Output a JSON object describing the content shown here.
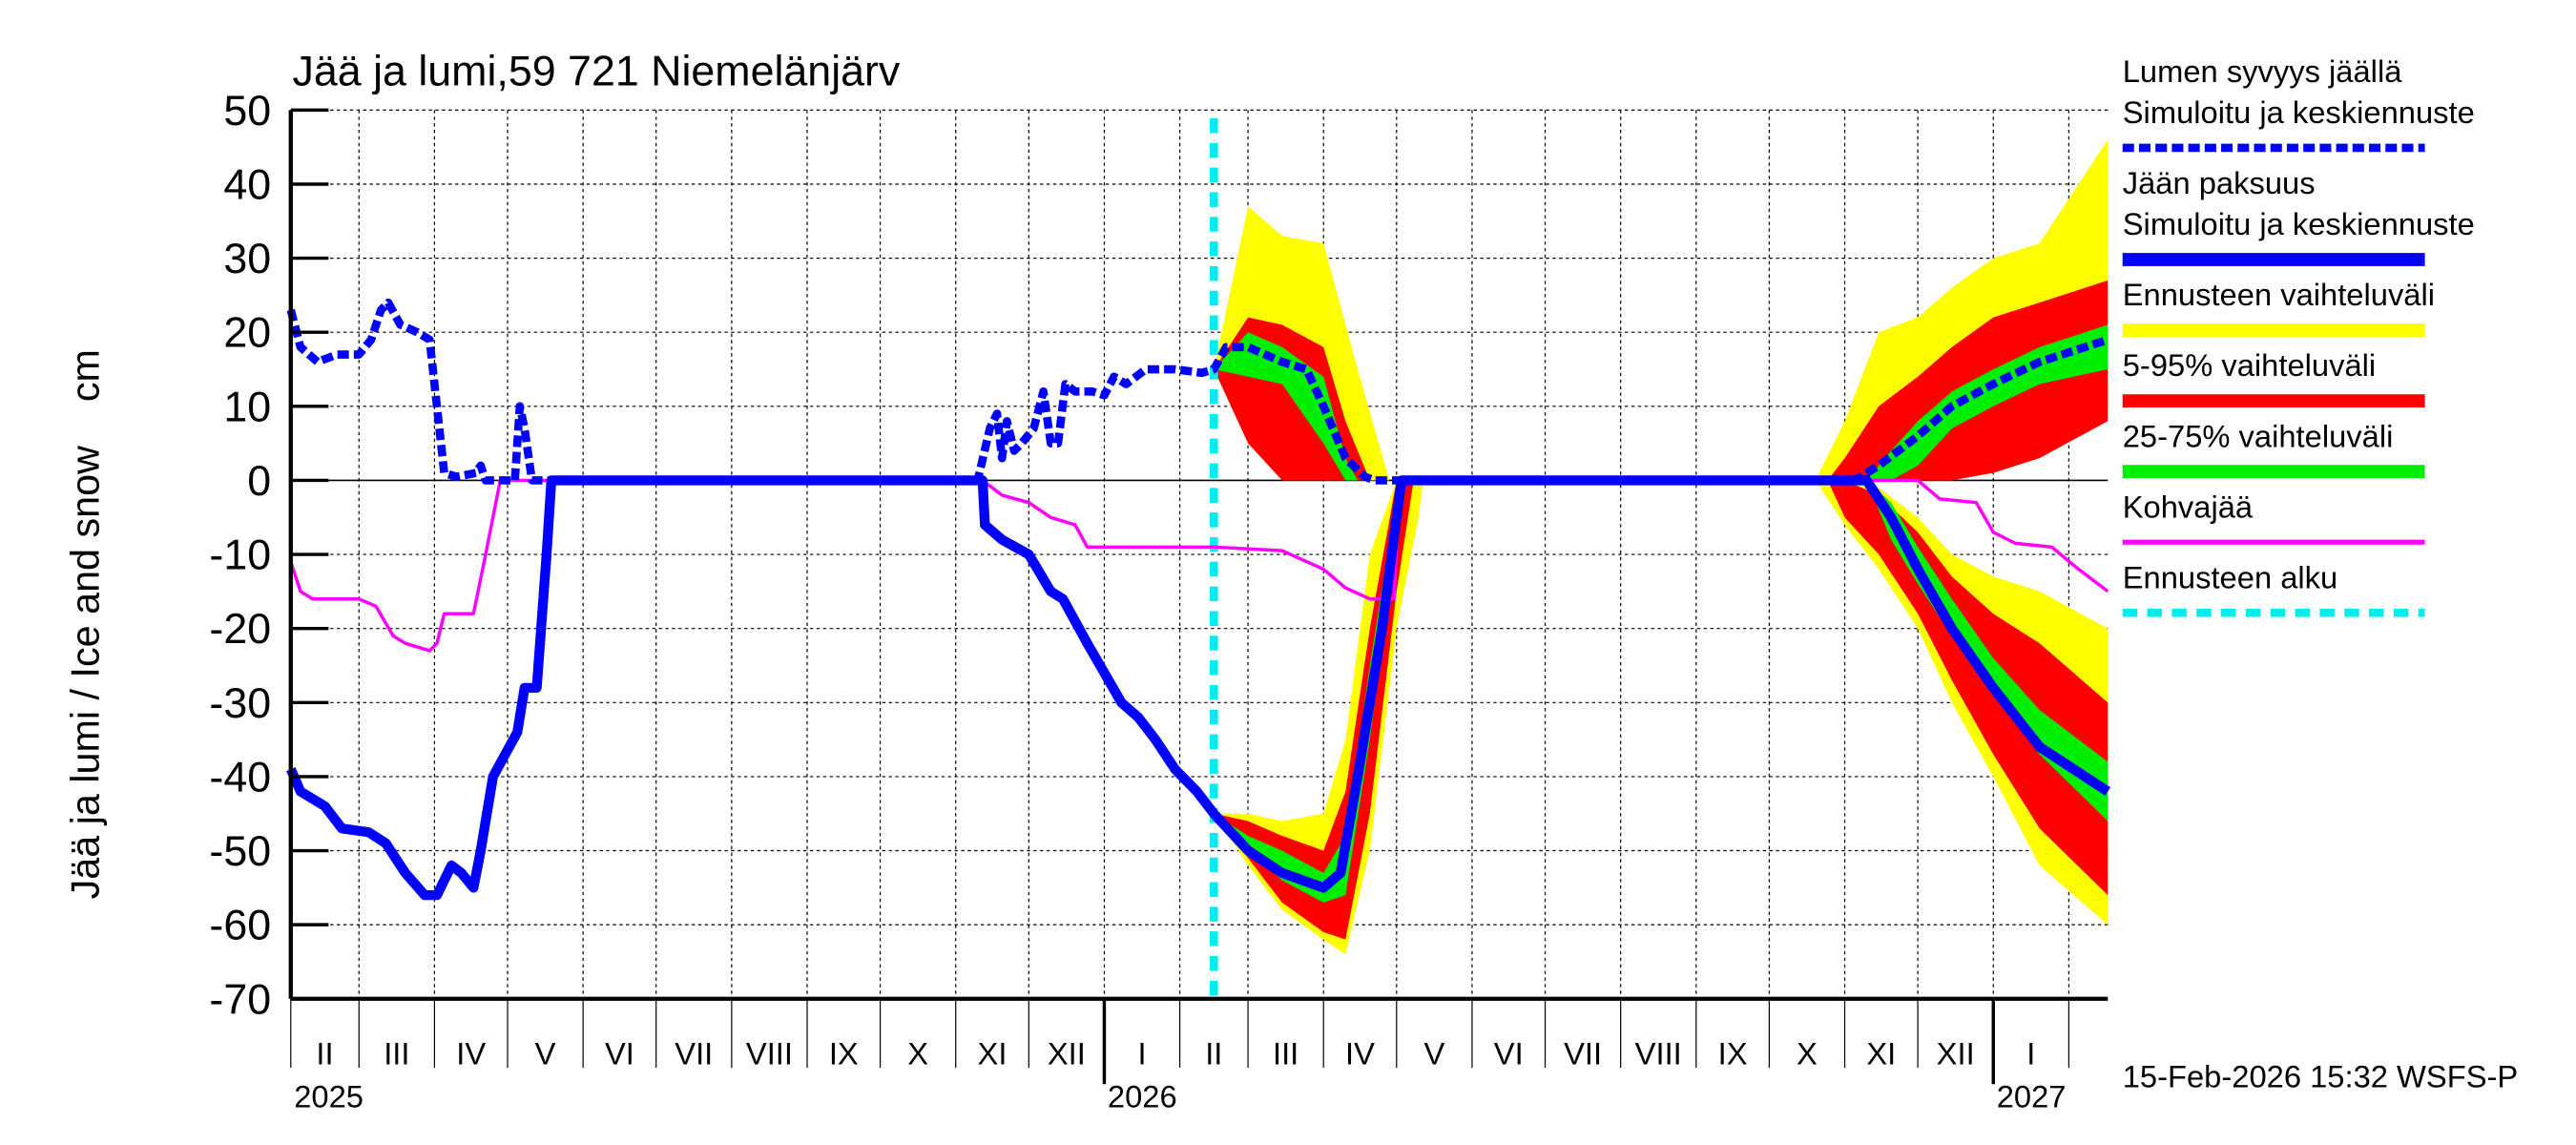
{
  "chart_data": {
    "type": "area",
    "title": "Jää ja lumi,59 721 Niemelänjärv",
    "ylabel": "Jää ja lumi / Ice and snow    cm",
    "ylim": [
      -70,
      50
    ],
    "yticks": [
      50,
      40,
      30,
      20,
      10,
      0,
      -10,
      -20,
      -30,
      -40,
      -50,
      -60,
      -70
    ],
    "xlim": [
      "2025-02-01",
      "2027-02-17"
    ],
    "grid": true,
    "legend_position": "right",
    "month_labels": [
      "II",
      "III",
      "IV",
      "V",
      "VI",
      "VII",
      "VIII",
      "IX",
      "X",
      "XI",
      "XII",
      "I",
      "II",
      "III",
      "IV",
      "V",
      "VI",
      "VII",
      "VIII",
      "IX",
      "X",
      "XI",
      "XII",
      "I"
    ],
    "month_starts": [
      "2025-02-01",
      "2025-03-01",
      "2025-04-01",
      "2025-05-01",
      "2025-06-01",
      "2025-07-01",
      "2025-08-01",
      "2025-09-01",
      "2025-10-01",
      "2025-11-01",
      "2025-12-01",
      "2026-01-01",
      "2026-02-01",
      "2026-03-01",
      "2026-04-01",
      "2026-05-01",
      "2026-06-01",
      "2026-07-01",
      "2026-08-01",
      "2026-09-01",
      "2026-10-01",
      "2026-11-01",
      "2026-12-01",
      "2027-01-01",
      "2027-02-01"
    ],
    "year_labels": [
      {
        "label": "2025",
        "date": "2025-02-01"
      },
      {
        "label": "2026",
        "date": "2026-01-01"
      },
      {
        "label": "2027",
        "date": "2027-01-01"
      }
    ],
    "forecast_start": "2026-02-15",
    "timestamp": "15-Feb-2026 15:32 WSFS-P",
    "colors": {
      "snow": "#0000ff",
      "ice": "#0000ff",
      "band_full": "#ffff00",
      "band_5_95": "#ff0000",
      "band_25_75": "#00ee00",
      "kohvajaa": "#ff00ff",
      "forecast_start": "#00eeee"
    },
    "legend": [
      {
        "label1": "Lumen syvyys jäällä",
        "label2": "Simuloitu ja keskiennuste",
        "style": "dashed-blue"
      },
      {
        "label1": "Jään paksuus",
        "label2": "Simuloitu ja keskiennuste",
        "style": "solid-blue"
      },
      {
        "label1": "Ennusteen vaihteluväli",
        "style": "yellow"
      },
      {
        "label1": "5-95% vaihteluväli",
        "style": "red"
      },
      {
        "label1": "25-75% vaihteluväli",
        "style": "green"
      },
      {
        "label1": "Kohvajää",
        "style": "magenta"
      },
      {
        "label1": "Ennusteen alku",
        "style": "dashed-cyan"
      }
    ],
    "bands": {
      "snow_full": [
        [
          "2026-02-15",
          15,
          15
        ],
        [
          "2026-03-01",
          10,
          37
        ],
        [
          "2026-03-15",
          4,
          33
        ],
        [
          "2026-04-01",
          0,
          32
        ],
        [
          "2026-04-15",
          0,
          15
        ],
        [
          "2026-04-28",
          0,
          0
        ],
        [
          "2026-10-20",
          0,
          0
        ],
        [
          "2026-11-01",
          0,
          8
        ],
        [
          "2026-11-15",
          0,
          20
        ],
        [
          "2026-12-01",
          0,
          22
        ],
        [
          "2026-12-15",
          0,
          26
        ],
        [
          "2027-01-01",
          3,
          30
        ],
        [
          "2027-01-20",
          5,
          32
        ],
        [
          "2027-02-17",
          10,
          46
        ]
      ],
      "snow_5_95": [
        [
          "2026-02-15",
          15,
          15
        ],
        [
          "2026-03-01",
          5,
          22
        ],
        [
          "2026-03-15",
          0,
          21
        ],
        [
          "2026-04-01",
          0,
          18
        ],
        [
          "2026-04-10",
          0,
          8
        ],
        [
          "2026-04-20",
          0,
          0
        ],
        [
          "2026-10-25",
          0,
          0
        ],
        [
          "2026-11-01",
          0,
          3
        ],
        [
          "2026-11-15",
          0,
          10
        ],
        [
          "2026-12-01",
          0,
          14
        ],
        [
          "2026-12-15",
          0,
          18
        ],
        [
          "2027-01-01",
          1,
          22
        ],
        [
          "2027-01-20",
          3,
          24
        ],
        [
          "2027-02-17",
          8,
          27
        ]
      ],
      "snow_25_75": [
        [
          "2026-02-15",
          15,
          15
        ],
        [
          "2026-03-01",
          14,
          20
        ],
        [
          "2026-03-15",
          13,
          18
        ],
        [
          "2026-04-01",
          5,
          14
        ],
        [
          "2026-04-10",
          0,
          3
        ],
        [
          "2026-04-15",
          0,
          0
        ],
        [
          "2026-11-10",
          0,
          0
        ],
        [
          "2026-11-20",
          0,
          4
        ],
        [
          "2026-12-01",
          2,
          8
        ],
        [
          "2026-12-15",
          7,
          12
        ],
        [
          "2027-01-01",
          10,
          15
        ],
        [
          "2027-01-20",
          13,
          18
        ],
        [
          "2027-02-17",
          15,
          21
        ]
      ],
      "ice_full": [
        [
          "2026-02-15",
          -45,
          -45
        ],
        [
          "2026-03-01",
          -52,
          -45
        ],
        [
          "2026-03-15",
          -58,
          -46
        ],
        [
          "2026-04-01",
          -62,
          -45
        ],
        [
          "2026-04-10",
          -64,
          -35
        ],
        [
          "2026-04-20",
          -50,
          -10
        ],
        [
          "2026-05-01",
          -20,
          0
        ],
        [
          "2026-05-10",
          -5,
          0
        ],
        [
          "2026-05-12",
          0,
          0
        ],
        [
          "2026-10-20",
          0,
          0
        ],
        [
          "2026-11-01",
          -6,
          0
        ],
        [
          "2026-11-15",
          -12,
          -1
        ],
        [
          "2026-12-01",
          -20,
          -5
        ],
        [
          "2026-12-15",
          -30,
          -10
        ],
        [
          "2027-01-01",
          -40,
          -13
        ],
        [
          "2027-01-20",
          -52,
          -15
        ],
        [
          "2027-02-17",
          -60,
          -20
        ]
      ],
      "ice_5_95": [
        [
          "2026-02-15",
          -45,
          -45
        ],
        [
          "2026-03-01",
          -51,
          -46
        ],
        [
          "2026-03-15",
          -57,
          -48
        ],
        [
          "2026-04-01",
          -61,
          -50
        ],
        [
          "2026-04-10",
          -62,
          -42
        ],
        [
          "2026-04-20",
          -45,
          -20
        ],
        [
          "2026-05-01",
          -15,
          0
        ],
        [
          "2026-05-08",
          0,
          0
        ],
        [
          "2026-10-25",
          0,
          0
        ],
        [
          "2026-11-01",
          -5,
          0
        ],
        [
          "2026-11-15",
          -10,
          -2
        ],
        [
          "2026-12-01",
          -18,
          -7
        ],
        [
          "2026-12-15",
          -27,
          -13
        ],
        [
          "2027-01-01",
          -37,
          -18
        ],
        [
          "2027-01-20",
          -47,
          -22
        ],
        [
          "2027-02-17",
          -56,
          -30
        ]
      ],
      "ice_25_75": [
        [
          "2026-02-15",
          -45,
          -45
        ],
        [
          "2026-03-01",
          -50,
          -48
        ],
        [
          "2026-03-15",
          -54,
          -50
        ],
        [
          "2026-04-01",
          -57,
          -53
        ],
        [
          "2026-04-10",
          -56,
          -48
        ],
        [
          "2026-04-20",
          -35,
          -25
        ],
        [
          "2026-05-01",
          -8,
          -2
        ],
        [
          "2026-05-04",
          0,
          0
        ],
        [
          "2026-11-10",
          0,
          0
        ],
        [
          "2026-11-20",
          -8,
          -3
        ],
        [
          "2026-12-01",
          -14,
          -9
        ],
        [
          "2026-12-15",
          -21,
          -16
        ],
        [
          "2027-01-01",
          -29,
          -24
        ],
        [
          "2027-01-20",
          -37,
          -31
        ],
        [
          "2027-02-17",
          -46,
          -38
        ]
      ]
    },
    "series": [
      {
        "name": "Lumen syvyys jäällä",
        "style": "dashed",
        "values": [
          [
            "2025-02-01",
            23
          ],
          [
            "2025-02-05",
            18
          ],
          [
            "2025-02-12",
            16
          ],
          [
            "2025-02-20",
            17
          ],
          [
            "2025-03-01",
            17
          ],
          [
            "2025-03-06",
            19
          ],
          [
            "2025-03-10",
            23
          ],
          [
            "2025-03-13",
            24
          ],
          [
            "2025-03-18",
            21
          ],
          [
            "2025-03-25",
            20
          ],
          [
            "2025-03-30",
            19
          ],
          [
            "2025-04-05",
            1
          ],
          [
            "2025-04-10",
            0.5
          ],
          [
            "2025-04-18",
            1
          ],
          [
            "2025-04-20",
            2
          ],
          [
            "2025-04-22",
            0
          ],
          [
            "2025-05-04",
            0
          ],
          [
            "2025-05-06",
            10
          ],
          [
            "2025-05-08",
            7
          ],
          [
            "2025-05-11",
            0
          ],
          [
            "2025-11-10",
            0
          ],
          [
            "2025-11-15",
            7
          ],
          [
            "2025-11-18",
            9
          ],
          [
            "2025-11-20",
            3
          ],
          [
            "2025-11-22",
            8
          ],
          [
            "2025-11-25",
            4
          ],
          [
            "2025-11-28",
            5
          ],
          [
            "2025-12-03",
            7
          ],
          [
            "2025-12-07",
            12
          ],
          [
            "2025-12-10",
            5
          ],
          [
            "2025-12-13",
            5
          ],
          [
            "2025-12-16",
            13
          ],
          [
            "2025-12-20",
            12
          ],
          [
            "2025-12-27",
            12
          ],
          [
            "2026-01-01",
            11.5
          ],
          [
            "2026-01-05",
            14
          ],
          [
            "2026-01-10",
            13
          ],
          [
            "2026-01-18",
            15
          ],
          [
            "2026-01-30",
            15
          ],
          [
            "2026-02-10",
            14.5
          ],
          [
            "2026-02-15",
            15
          ],
          [
            "2026-02-20",
            18
          ],
          [
            "2026-03-01",
            18
          ],
          [
            "2026-03-15",
            16
          ],
          [
            "2026-03-25",
            15
          ],
          [
            "2026-04-01",
            10
          ],
          [
            "2026-04-10",
            3
          ],
          [
            "2026-04-18",
            0.5
          ],
          [
            "2026-04-22",
            0
          ],
          [
            "2026-11-05",
            0
          ],
          [
            "2026-11-15",
            2
          ],
          [
            "2026-12-01",
            6
          ],
          [
            "2026-12-15",
            10
          ],
          [
            "2027-01-01",
            13
          ],
          [
            "2027-01-20",
            16
          ],
          [
            "2027-02-17",
            19
          ]
        ]
      },
      {
        "name": "Jään paksuus",
        "style": "solid",
        "values": [
          [
            "2025-02-01",
            -39
          ],
          [
            "2025-02-05",
            -42
          ],
          [
            "2025-02-15",
            -44
          ],
          [
            "2025-02-22",
            -47
          ],
          [
            "2025-03-05",
            -47.5
          ],
          [
            "2025-03-12",
            -49
          ],
          [
            "2025-03-20",
            -53
          ],
          [
            "2025-03-28",
            -56
          ],
          [
            "2025-04-02",
            -56
          ],
          [
            "2025-04-08",
            -52
          ],
          [
            "2025-04-12",
            -53
          ],
          [
            "2025-04-17",
            -55
          ],
          [
            "2025-04-20",
            -50
          ],
          [
            "2025-04-25",
            -40
          ],
          [
            "2025-04-30",
            -37
          ],
          [
            "2025-05-05",
            -34
          ],
          [
            "2025-05-08",
            -28
          ],
          [
            "2025-05-13",
            -28
          ],
          [
            "2025-05-17",
            -10
          ],
          [
            "2025-05-19",
            0
          ],
          [
            "2025-11-12",
            0
          ],
          [
            "2025-11-13",
            -6
          ],
          [
            "2025-11-20",
            -8
          ],
          [
            "2025-12-01",
            -10
          ],
          [
            "2025-12-10",
            -15
          ],
          [
            "2025-12-15",
            -16
          ],
          [
            "2025-12-25",
            -22
          ],
          [
            "2026-01-01",
            -26
          ],
          [
            "2026-01-08",
            -30
          ],
          [
            "2026-01-15",
            -32
          ],
          [
            "2026-01-22",
            -35
          ],
          [
            "2026-01-30",
            -39
          ],
          [
            "2026-02-08",
            -42
          ],
          [
            "2026-02-15",
            -45
          ],
          [
            "2026-03-01",
            -50
          ],
          [
            "2026-03-15",
            -53
          ],
          [
            "2026-04-01",
            -55
          ],
          [
            "2026-04-08",
            -53
          ],
          [
            "2026-04-15",
            -40
          ],
          [
            "2026-04-25",
            -20
          ],
          [
            "2026-05-01",
            -5
          ],
          [
            "2026-05-03",
            0
          ],
          [
            "2026-11-10",
            0
          ],
          [
            "2026-11-20",
            -5
          ],
          [
            "2026-12-01",
            -12
          ],
          [
            "2026-12-15",
            -20
          ],
          [
            "2027-01-01",
            -28
          ],
          [
            "2027-01-20",
            -36
          ],
          [
            "2027-02-17",
            -42
          ]
        ]
      },
      {
        "name": "Kohvajää",
        "style": "thin",
        "values": [
          [
            "2025-02-01",
            -11
          ],
          [
            "2025-02-05",
            -15
          ],
          [
            "2025-02-10",
            -16
          ],
          [
            "2025-03-01",
            -16
          ],
          [
            "2025-03-08",
            -17
          ],
          [
            "2025-03-15",
            -21
          ],
          [
            "2025-03-20",
            -22
          ],
          [
            "2025-03-30",
            -23
          ],
          [
            "2025-04-02",
            -22
          ],
          [
            "2025-04-05",
            -18
          ],
          [
            "2025-04-17",
            -18
          ],
          [
            "2025-04-22",
            -10
          ],
          [
            "2025-04-28",
            0
          ],
          [
            "2025-11-12",
            0
          ],
          [
            "2025-11-20",
            -2
          ],
          [
            "2025-12-01",
            -3
          ],
          [
            "2025-12-10",
            -5
          ],
          [
            "2025-12-20",
            -6
          ],
          [
            "2025-12-25",
            -9
          ],
          [
            "2026-02-15",
            -9
          ],
          [
            "2026-03-15",
            -9.5
          ],
          [
            "2026-04-01",
            -12
          ],
          [
            "2026-04-10",
            -14.5
          ],
          [
            "2026-04-20",
            -16
          ],
          [
            "2026-04-30",
            -16
          ],
          [
            "2026-05-02",
            0
          ],
          [
            "2026-12-01",
            0
          ],
          [
            "2026-12-10",
            -2.5
          ],
          [
            "2026-12-25",
            -3
          ],
          [
            "2027-01-01",
            -7
          ],
          [
            "2027-01-10",
            -8.5
          ],
          [
            "2027-01-25",
            -9
          ],
          [
            "2027-02-05",
            -12
          ],
          [
            "2027-02-17",
            -15
          ]
        ]
      }
    ]
  }
}
